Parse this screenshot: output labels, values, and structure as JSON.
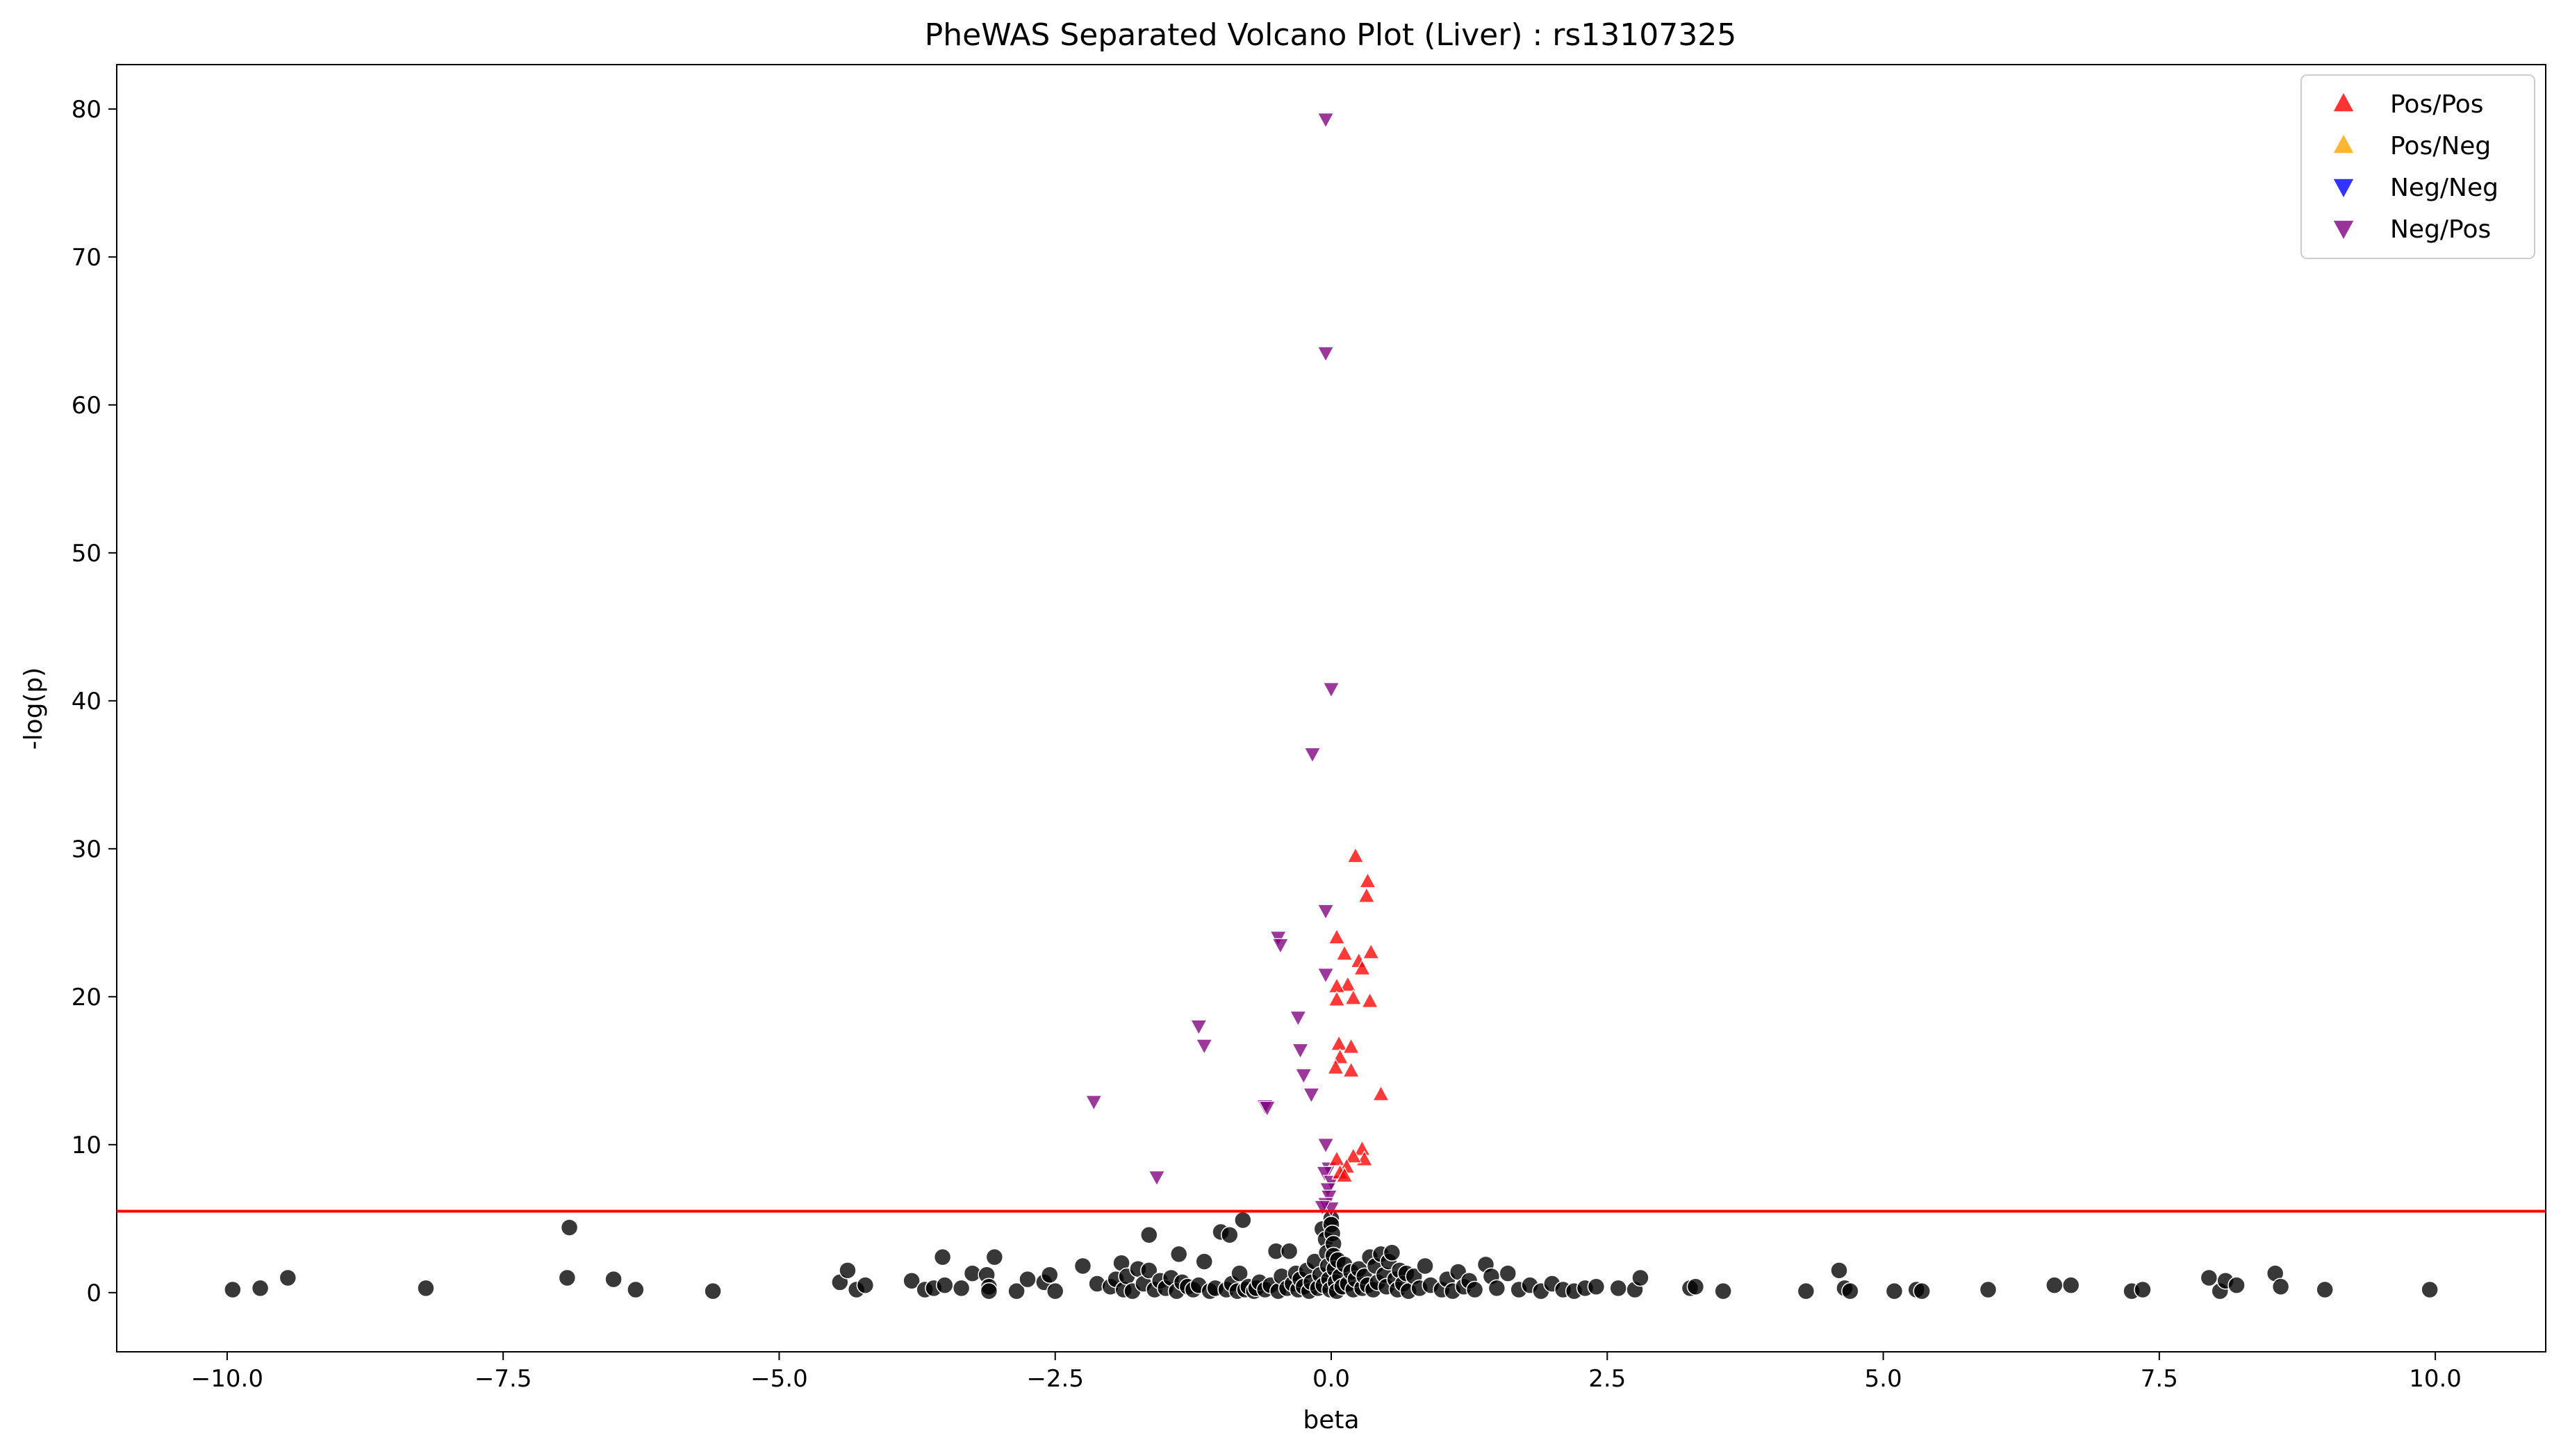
{
  "chart_data": {
    "type": "scatter",
    "title": "PheWAS Separated Volcano Plot (Liver) : rs13107325",
    "xlabel": "beta",
    "ylabel": "-log(p)",
    "xlim": [
      -11.0,
      11.0
    ],
    "ylim": [
      -4.0,
      83.0
    ],
    "xticks": [
      -10.0,
      -7.5,
      -5.0,
      -2.5,
      0.0,
      2.5,
      5.0,
      7.5,
      10.0
    ],
    "xtick_labels": [
      "−10.0",
      "−7.5",
      "−5.0",
      "−2.5",
      "0.0",
      "2.5",
      "5.0",
      "7.5",
      "10.0"
    ],
    "yticks": [
      0,
      10,
      20,
      30,
      40,
      50,
      60,
      70,
      80
    ],
    "ytick_labels": [
      "0",
      "10",
      "20",
      "30",
      "40",
      "50",
      "60",
      "70",
      "80"
    ],
    "threshold": {
      "y": 5.5,
      "color": "#ff0000"
    },
    "legend": {
      "position": "top-right",
      "entries": [
        {
          "label": "Pos/Pos",
          "marker": "triangle-up",
          "color": "#ff0000"
        },
        {
          "label": "Pos/Neg",
          "marker": "triangle-up",
          "color": "#ffa500"
        },
        {
          "label": "Neg/Neg",
          "marker": "triangle-down",
          "color": "#0000ff"
        },
        {
          "label": "Neg/Pos",
          "marker": "triangle-down",
          "color": "#800080"
        }
      ]
    },
    "series": [
      {
        "name": "Pos/Pos",
        "marker": "triangle-up",
        "color": "#ff0000",
        "points": [
          [
            0.22,
            29.5
          ],
          [
            0.33,
            27.8
          ],
          [
            0.32,
            26.8
          ],
          [
            0.05,
            24.0
          ],
          [
            0.12,
            22.9
          ],
          [
            0.36,
            23.0
          ],
          [
            0.25,
            22.4
          ],
          [
            0.28,
            21.9
          ],
          [
            0.15,
            20.8
          ],
          [
            0.05,
            20.7
          ],
          [
            0.2,
            19.9
          ],
          [
            0.35,
            19.7
          ],
          [
            0.05,
            19.8
          ],
          [
            0.07,
            16.8
          ],
          [
            0.18,
            16.6
          ],
          [
            0.08,
            15.9
          ],
          [
            0.04,
            15.2
          ],
          [
            0.18,
            15.0
          ],
          [
            0.45,
            13.4
          ],
          [
            0.28,
            9.7
          ],
          [
            0.3,
            9.0
          ],
          [
            0.05,
            9.0
          ],
          [
            0.2,
            9.2
          ],
          [
            0.14,
            8.5
          ],
          [
            0.08,
            8.1
          ],
          [
            0.12,
            7.9
          ]
        ]
      },
      {
        "name": "Pos/Neg",
        "marker": "triangle-up",
        "color": "#ffa500",
        "points": []
      },
      {
        "name": "Neg/Neg",
        "marker": "triangle-down",
        "color": "#0000ff",
        "points": []
      },
      {
        "name": "Neg/Pos",
        "marker": "triangle-down",
        "color": "#800080",
        "points": [
          [
            -0.05,
            79.3
          ],
          [
            -0.05,
            63.5
          ],
          [
            0.0,
            40.8
          ],
          [
            -0.17,
            36.4
          ],
          [
            -0.05,
            25.8
          ],
          [
            -0.48,
            24.0
          ],
          [
            -0.46,
            23.5
          ],
          [
            -0.05,
            21.5
          ],
          [
            -1.2,
            18.0
          ],
          [
            -1.15,
            16.7
          ],
          [
            -0.3,
            18.6
          ],
          [
            -0.28,
            16.4
          ],
          [
            -0.25,
            14.7
          ],
          [
            -0.18,
            13.4
          ],
          [
            -2.15,
            12.9
          ],
          [
            -0.6,
            12.6
          ],
          [
            -0.58,
            12.5
          ],
          [
            -0.05,
            10.0
          ],
          [
            -1.58,
            7.8
          ],
          [
            -0.02,
            8.4
          ],
          [
            -0.06,
            8.1
          ],
          [
            0.0,
            7.5
          ],
          [
            -0.03,
            7.0
          ],
          [
            -0.02,
            6.5
          ],
          [
            -0.05,
            6.0
          ],
          [
            0.0,
            5.7
          ],
          [
            -0.08,
            5.8
          ]
        ]
      },
      {
        "name": "",
        "marker": "circle",
        "color": "#000000",
        "points": [
          [
            -9.95,
            0.2
          ],
          [
            -9.7,
            0.3
          ],
          [
            -9.45,
            1.0
          ],
          [
            -8.2,
            0.3
          ],
          [
            -6.9,
            4.4
          ],
          [
            -6.92,
            1.0
          ],
          [
            -6.5,
            0.9
          ],
          [
            -6.3,
            0.2
          ],
          [
            -5.6,
            0.1
          ],
          [
            -4.45,
            0.7
          ],
          [
            -4.38,
            1.5
          ],
          [
            -4.3,
            0.2
          ],
          [
            -4.22,
            0.5
          ],
          [
            -3.8,
            0.8
          ],
          [
            -3.68,
            0.2
          ],
          [
            -3.6,
            0.3
          ],
          [
            -3.52,
            2.4
          ],
          [
            -3.5,
            0.5
          ],
          [
            -3.35,
            0.3
          ],
          [
            -3.25,
            1.3
          ],
          [
            -3.12,
            1.2
          ],
          [
            -3.1,
            0.4
          ],
          [
            -3.1,
            0.1
          ],
          [
            -3.05,
            2.4
          ],
          [
            -2.85,
            0.1
          ],
          [
            -2.75,
            0.9
          ],
          [
            -2.6,
            0.7
          ],
          [
            -2.55,
            1.2
          ],
          [
            -2.5,
            0.1
          ],
          [
            -2.25,
            1.8
          ],
          [
            -2.12,
            0.6
          ],
          [
            -2.0,
            0.4
          ],
          [
            -1.95,
            0.9
          ],
          [
            -1.9,
            2.0
          ],
          [
            -1.88,
            0.2
          ],
          [
            -1.85,
            1.1
          ],
          [
            -1.8,
            0.1
          ],
          [
            -1.75,
            1.6
          ],
          [
            -1.7,
            0.6
          ],
          [
            -1.65,
            1.5
          ],
          [
            -1.65,
            3.9
          ],
          [
            -1.6,
            0.2
          ],
          [
            -1.55,
            0.8
          ],
          [
            -1.5,
            0.3
          ],
          [
            -1.45,
            1.0
          ],
          [
            -1.4,
            0.1
          ],
          [
            -1.38,
            2.6
          ],
          [
            -1.35,
            0.7
          ],
          [
            -1.3,
            0.4
          ],
          [
            -1.25,
            0.2
          ],
          [
            -1.2,
            0.5
          ],
          [
            -1.15,
            2.1
          ],
          [
            -1.1,
            0.1
          ],
          [
            -1.05,
            0.3
          ],
          [
            -1.0,
            4.1
          ],
          [
            -0.95,
            0.2
          ],
          [
            -0.92,
            3.9
          ],
          [
            -0.9,
            0.6
          ],
          [
            -0.85,
            0.1
          ],
          [
            -0.83,
            1.3
          ],
          [
            -0.8,
            4.9
          ],
          [
            -0.78,
            0.2
          ],
          [
            -0.75,
            0.4
          ],
          [
            -0.7,
            0.1
          ],
          [
            -0.68,
            0.3
          ],
          [
            -0.65,
            0.7
          ],
          [
            -0.6,
            0.2
          ],
          [
            -0.55,
            0.5
          ],
          [
            -0.5,
            2.8
          ],
          [
            -0.48,
            0.1
          ],
          [
            -0.45,
            1.1
          ],
          [
            -0.4,
            0.3
          ],
          [
            -0.38,
            2.8
          ],
          [
            -0.35,
            0.6
          ],
          [
            -0.32,
            1.3
          ],
          [
            -0.3,
            0.2
          ],
          [
            -0.28,
            0.9
          ],
          [
            -0.25,
            0.4
          ],
          [
            -0.22,
            1.5
          ],
          [
            -0.2,
            0.1
          ],
          [
            -0.18,
            0.7
          ],
          [
            -0.15,
            2.1
          ],
          [
            -0.12,
            0.3
          ],
          [
            -0.1,
            1.2
          ],
          [
            -0.08,
            4.3
          ],
          [
            -0.07,
            0.5
          ],
          [
            -0.05,
            3.6
          ],
          [
            -0.04,
            2.7
          ],
          [
            -0.03,
            1.8
          ],
          [
            -0.02,
            0.9
          ],
          [
            -0.01,
            0.2
          ],
          [
            0.0,
            5.0
          ],
          [
            0.0,
            4.6
          ],
          [
            0.01,
            4.0
          ],
          [
            0.02,
            3.3
          ],
          [
            0.02,
            2.5
          ],
          [
            0.03,
            1.6
          ],
          [
            0.04,
            0.7
          ],
          [
            0.05,
            0.1
          ],
          [
            0.06,
            2.2
          ],
          [
            0.08,
            1.1
          ],
          [
            0.1,
            0.4
          ],
          [
            0.12,
            1.9
          ],
          [
            0.15,
            0.6
          ],
          [
            0.18,
            1.4
          ],
          [
            0.2,
            0.2
          ],
          [
            0.22,
            0.9
          ],
          [
            0.25,
            1.6
          ],
          [
            0.28,
            0.3
          ],
          [
            0.3,
            1.1
          ],
          [
            0.33,
            0.5
          ],
          [
            0.35,
            2.4
          ],
          [
            0.38,
            0.2
          ],
          [
            0.4,
            1.8
          ],
          [
            0.42,
            0.7
          ],
          [
            0.45,
            2.6
          ],
          [
            0.48,
            1.2
          ],
          [
            0.5,
            0.4
          ],
          [
            0.52,
            2.1
          ],
          [
            0.55,
            2.7
          ],
          [
            0.58,
            0.9
          ],
          [
            0.6,
            0.2
          ],
          [
            0.62,
            1.5
          ],
          [
            0.65,
            0.6
          ],
          [
            0.68,
            1.3
          ],
          [
            0.7,
            0.1
          ],
          [
            0.75,
            1.1
          ],
          [
            0.8,
            0.3
          ],
          [
            0.85,
            1.8
          ],
          [
            0.9,
            0.5
          ],
          [
            1.0,
            0.2
          ],
          [
            1.05,
            0.9
          ],
          [
            1.1,
            0.1
          ],
          [
            1.15,
            1.4
          ],
          [
            1.2,
            0.4
          ],
          [
            1.25,
            0.8
          ],
          [
            1.3,
            0.2
          ],
          [
            1.4,
            1.9
          ],
          [
            1.45,
            1.1
          ],
          [
            1.5,
            0.3
          ],
          [
            1.6,
            1.3
          ],
          [
            1.7,
            0.2
          ],
          [
            1.8,
            0.5
          ],
          [
            1.9,
            0.1
          ],
          [
            2.0,
            0.6
          ],
          [
            2.1,
            0.2
          ],
          [
            2.2,
            0.1
          ],
          [
            2.3,
            0.3
          ],
          [
            2.4,
            0.4
          ],
          [
            2.6,
            0.3
          ],
          [
            2.75,
            0.2
          ],
          [
            2.8,
            1.0
          ],
          [
            3.25,
            0.3
          ],
          [
            3.3,
            0.4
          ],
          [
            3.55,
            0.1
          ],
          [
            4.3,
            0.1
          ],
          [
            4.6,
            1.5
          ],
          [
            4.65,
            0.3
          ],
          [
            4.7,
            0.1
          ],
          [
            5.1,
            0.1
          ],
          [
            5.3,
            0.2
          ],
          [
            5.35,
            0.1
          ],
          [
            5.95,
            0.2
          ],
          [
            6.55,
            0.5
          ],
          [
            6.7,
            0.5
          ],
          [
            7.25,
            0.1
          ],
          [
            7.35,
            0.2
          ],
          [
            7.95,
            1.0
          ],
          [
            8.05,
            0.1
          ],
          [
            8.1,
            0.8
          ],
          [
            8.2,
            0.5
          ],
          [
            8.55,
            1.3
          ],
          [
            8.6,
            0.4
          ],
          [
            9.0,
            0.2
          ],
          [
            9.95,
            0.2
          ]
        ]
      }
    ]
  }
}
